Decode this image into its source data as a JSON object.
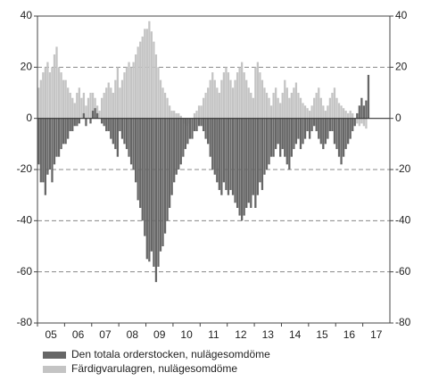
{
  "chart_data": {
    "type": "bar",
    "categories": [
      "05",
      null,
      null,
      null,
      null,
      null,
      null,
      null,
      null,
      null,
      null,
      null,
      "06",
      null,
      null,
      null,
      null,
      null,
      null,
      null,
      null,
      null,
      null,
      null,
      "07",
      null,
      null,
      null,
      null,
      null,
      null,
      null,
      null,
      null,
      null,
      null,
      "08",
      null,
      null,
      null,
      null,
      null,
      null,
      null,
      null,
      null,
      null,
      null,
      "09",
      null,
      null,
      null,
      null,
      null,
      null,
      null,
      null,
      null,
      null,
      null,
      "10",
      null,
      null,
      null,
      null,
      null,
      null,
      null,
      null,
      null,
      null,
      null,
      "11",
      null,
      null,
      null,
      null,
      null,
      null,
      null,
      null,
      null,
      null,
      null,
      "12",
      null,
      null,
      null,
      null,
      null,
      null,
      null,
      null,
      null,
      null,
      null,
      "13",
      null,
      null,
      null,
      null,
      null,
      null,
      null,
      null,
      null,
      null,
      null,
      "14",
      null,
      null,
      null,
      null,
      null,
      null,
      null,
      null,
      null,
      null,
      null,
      "15",
      null,
      null,
      null,
      null,
      null,
      null,
      null,
      null,
      null,
      null,
      null,
      "16",
      null,
      null,
      null,
      null,
      null,
      null,
      null,
      null,
      null,
      null,
      null,
      "17",
      null,
      null
    ],
    "series": [
      {
        "name": "Färdigvarulagren, nulägesomdöme",
        "color": "#c4c4c4",
        "values": [
          12,
          15,
          18,
          20,
          22,
          18,
          20,
          25,
          28,
          20,
          18,
          15,
          15,
          12,
          10,
          8,
          6,
          10,
          12,
          8,
          10,
          5,
          8,
          10,
          10,
          8,
          5,
          3,
          8,
          10,
          12,
          14,
          12,
          10,
          15,
          20,
          12,
          15,
          18,
          20,
          22,
          20,
          22,
          25,
          28,
          30,
          32,
          35,
          35,
          38,
          34,
          30,
          25,
          20,
          15,
          12,
          10,
          8,
          5,
          3,
          3,
          2,
          2,
          1,
          0,
          -2,
          -3,
          -2,
          0,
          2,
          3,
          5,
          5,
          8,
          10,
          12,
          15,
          18,
          15,
          12,
          10,
          15,
          18,
          20,
          18,
          15,
          12,
          15,
          18,
          20,
          22,
          18,
          15,
          12,
          10,
          8,
          20,
          22,
          18,
          15,
          12,
          10,
          8,
          5,
          10,
          12,
          8,
          6,
          10,
          15,
          12,
          8,
          10,
          12,
          14,
          10,
          8,
          6,
          5,
          4,
          3,
          5,
          8,
          10,
          12,
          8,
          5,
          3,
          5,
          8,
          10,
          12,
          8,
          6,
          5,
          4,
          3,
          2,
          3,
          2,
          0,
          -2,
          -3,
          -2,
          -3,
          -4,
          0
        ]
      },
      {
        "name": "Den totala orderstocken, nulägesomdöme",
        "color": "#666666",
        "values": [
          -18,
          -25,
          -25,
          -30,
          -22,
          -20,
          -25,
          -18,
          -15,
          -15,
          -12,
          -10,
          -10,
          -8,
          -5,
          -5,
          -3,
          -3,
          -2,
          0,
          2,
          -3,
          0,
          -2,
          3,
          4,
          2,
          0,
          -2,
          -3,
          -5,
          -5,
          -8,
          -10,
          -12,
          -15,
          -5,
          -8,
          -10,
          -12,
          -15,
          -18,
          -20,
          -25,
          -32,
          -35,
          -40,
          -46,
          -55,
          -56,
          -52,
          -58,
          -64,
          -58,
          -52,
          -50,
          -45,
          -40,
          -35,
          -30,
          -25,
          -22,
          -20,
          -18,
          -15,
          -12,
          -10,
          -8,
          -8,
          -5,
          -5,
          -3,
          -3,
          -5,
          -8,
          -10,
          -15,
          -20,
          -22,
          -25,
          -28,
          -30,
          -25,
          -28,
          -30,
          -28,
          -30,
          -33,
          -35,
          -38,
          -40,
          -38,
          -35,
          -33,
          -35,
          -30,
          -35,
          -30,
          -25,
          -28,
          -22,
          -20,
          -18,
          -15,
          -15,
          -12,
          -10,
          -15,
          -12,
          -15,
          -18,
          -20,
          -15,
          -12,
          -10,
          -8,
          -12,
          -10,
          -8,
          -5,
          -8,
          -5,
          -3,
          -5,
          -8,
          -10,
          -12,
          -10,
          -8,
          -5,
          -5,
          -10,
          -12,
          -15,
          -18,
          -15,
          -12,
          -10,
          -8,
          -5,
          -3,
          2,
          5,
          8,
          5,
          7,
          17
        ]
      }
    ],
    "ylim": [
      -80,
      40
    ],
    "yticks": [
      -80,
      -60,
      -40,
      -20,
      0,
      20,
      40
    ],
    "grid": true
  }
}
